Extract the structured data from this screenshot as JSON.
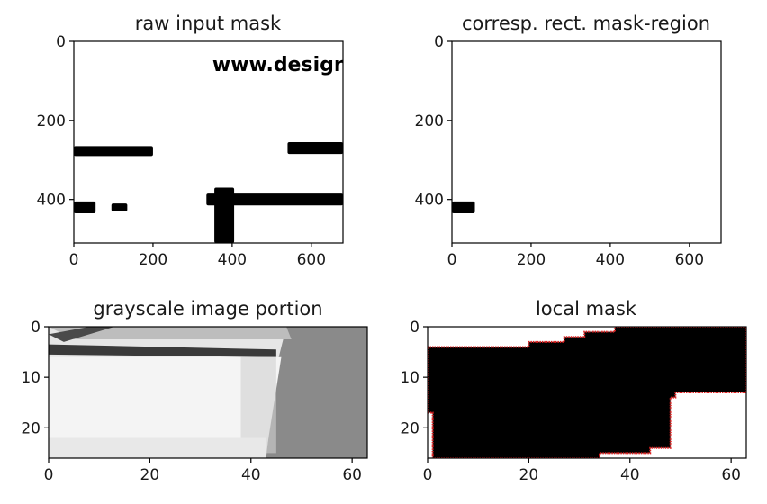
{
  "chart_data": [
    {
      "type": "image",
      "title": "raw input mask",
      "xlim": [
        0,
        680
      ],
      "ylim": [
        510,
        0
      ],
      "xticks": [
        0,
        200,
        400,
        600
      ],
      "yticks": [
        0,
        200,
        400
      ],
      "watermark_text": "www.design",
      "regions": [
        {
          "x": [
            0,
            200
          ],
          "y": [
            265,
            290
          ]
        },
        {
          "x": [
            540,
            680
          ],
          "y": [
            255,
            285
          ]
        },
        {
          "x": [
            0,
            55
          ],
          "y": [
            405,
            435
          ]
        },
        {
          "x": [
            95,
            135
          ],
          "y": [
            410,
            430
          ]
        },
        {
          "x": [
            335,
            680
          ],
          "y": [
            385,
            415
          ]
        },
        {
          "x": [
            355,
            405
          ],
          "y": [
            370,
            510
          ]
        }
      ]
    },
    {
      "type": "image",
      "title": "corresp. rect. mask-region",
      "xlim": [
        0,
        680
      ],
      "ylim": [
        510,
        0
      ],
      "xticks": [
        0,
        200,
        400,
        600
      ],
      "yticks": [
        0,
        200,
        400
      ],
      "regions": [
        {
          "x": [
            0,
            58
          ],
          "y": [
            405,
            435
          ]
        }
      ]
    },
    {
      "type": "image",
      "title": "grayscale image portion",
      "xlim": [
        0,
        63
      ],
      "ylim": [
        26,
        0
      ],
      "xticks": [
        0,
        20,
        40,
        60
      ],
      "yticks": [
        0,
        10,
        20
      ]
    },
    {
      "type": "image",
      "title": "local mask",
      "xlim": [
        0,
        63
      ],
      "ylim": [
        26,
        0
      ],
      "xticks": [
        0,
        20,
        40,
        60
      ],
      "yticks": [
        0,
        10,
        20
      ],
      "mask_polygon": [
        [
          0,
          4
        ],
        [
          20,
          4
        ],
        [
          20,
          3
        ],
        [
          27,
          3
        ],
        [
          27,
          2
        ],
        [
          31,
          2
        ],
        [
          31,
          1
        ],
        [
          37,
          1
        ],
        [
          37,
          0
        ],
        [
          63,
          0
        ],
        [
          63,
          13
        ],
        [
          49,
          13
        ],
        [
          49,
          14
        ],
        [
          48,
          14
        ],
        [
          48,
          24
        ],
        [
          44,
          24
        ],
        [
          44,
          25
        ],
        [
          34,
          25
        ],
        [
          34,
          26
        ],
        [
          1,
          26
        ],
        [
          1,
          17
        ],
        [
          0,
          17
        ]
      ],
      "outline_color": "#e02020"
    }
  ]
}
